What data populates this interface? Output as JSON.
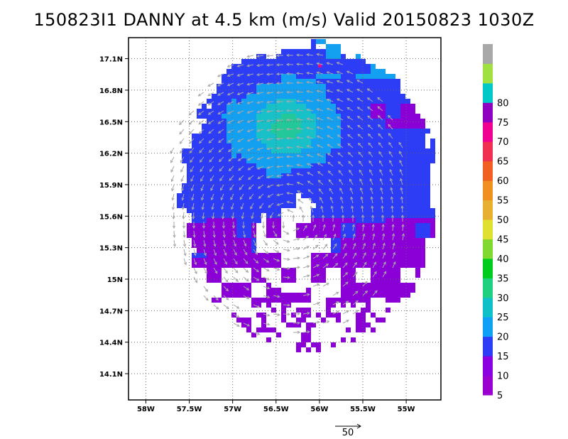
{
  "title": "150823I1 DANNY at 4.5 km (m/s) Valid 20150823 1030Z",
  "map": {
    "lon_range": [
      -58.2,
      -54.6
    ],
    "lat_range": [
      13.85,
      17.3
    ],
    "lon_ticks": [
      {
        "value": -58.0,
        "label": "58W"
      },
      {
        "value": -57.5,
        "label": "57.5W"
      },
      {
        "value": -57.0,
        "label": "57W"
      },
      {
        "value": -56.5,
        "label": "56.5W"
      },
      {
        "value": -56.0,
        "label": "56W"
      },
      {
        "value": -55.5,
        "label": "55.5W"
      },
      {
        "value": -55.0,
        "label": "55W"
      }
    ],
    "lat_ticks": [
      {
        "value": 17.1,
        "label": "17.1N"
      },
      {
        "value": 16.8,
        "label": "16.8N"
      },
      {
        "value": 16.5,
        "label": "16.5N"
      },
      {
        "value": 16.2,
        "label": "16.2N"
      },
      {
        "value": 15.9,
        "label": "15.9N"
      },
      {
        "value": 15.6,
        "label": "15.6N"
      },
      {
        "value": 15.3,
        "label": "15.3N"
      },
      {
        "value": 15.0,
        "label": "15N"
      },
      {
        "value": 14.7,
        "label": "14.7N"
      },
      {
        "value": 14.4,
        "label": "14.4N"
      },
      {
        "value": 14.1,
        "label": "14.1N"
      }
    ],
    "grid": true,
    "grid_style": "dotted",
    "center": {
      "lon": -56.15,
      "lat": 15.75
    }
  },
  "colorbar": {
    "levels": [
      {
        "label": "5",
        "color": "#9a00d0"
      },
      {
        "label": "10",
        "color": "#8a00e0"
      },
      {
        "label": "15",
        "color": "#2d3cf5"
      },
      {
        "label": "20",
        "color": "#0fa0f5"
      },
      {
        "label": "25",
        "color": "#10c0c8"
      },
      {
        "label": "30",
        "color": "#20d080"
      },
      {
        "label": "35",
        "color": "#00cc20"
      },
      {
        "label": "40",
        "color": "#80d830"
      },
      {
        "label": "45",
        "color": "#e0e030"
      },
      {
        "label": "50",
        "color": "#e8b030"
      },
      {
        "label": "55",
        "color": "#f09020"
      },
      {
        "label": "60",
        "color": "#f06020"
      },
      {
        "label": "65",
        "color": "#f03050"
      },
      {
        "label": "70",
        "color": "#f00090"
      },
      {
        "label": "75",
        "color": "#9000c0"
      },
      {
        "label": "80",
        "color": "#00c8c8"
      },
      {
        "label": "",
        "color": "#a0e040"
      },
      {
        "label": "",
        "color": "#a8a8a8"
      }
    ]
  },
  "vector_reference": {
    "label": "50",
    "value": 50,
    "units": "m/s"
  },
  "colors": {
    "purple": "#8c00d8",
    "blue": "#2d3cf5",
    "light_blue": "#14a0f0",
    "cyan": "#18c0c8",
    "green": "#22c89a",
    "magenta": "#ee0090",
    "vector": "#a8a8a8"
  }
}
